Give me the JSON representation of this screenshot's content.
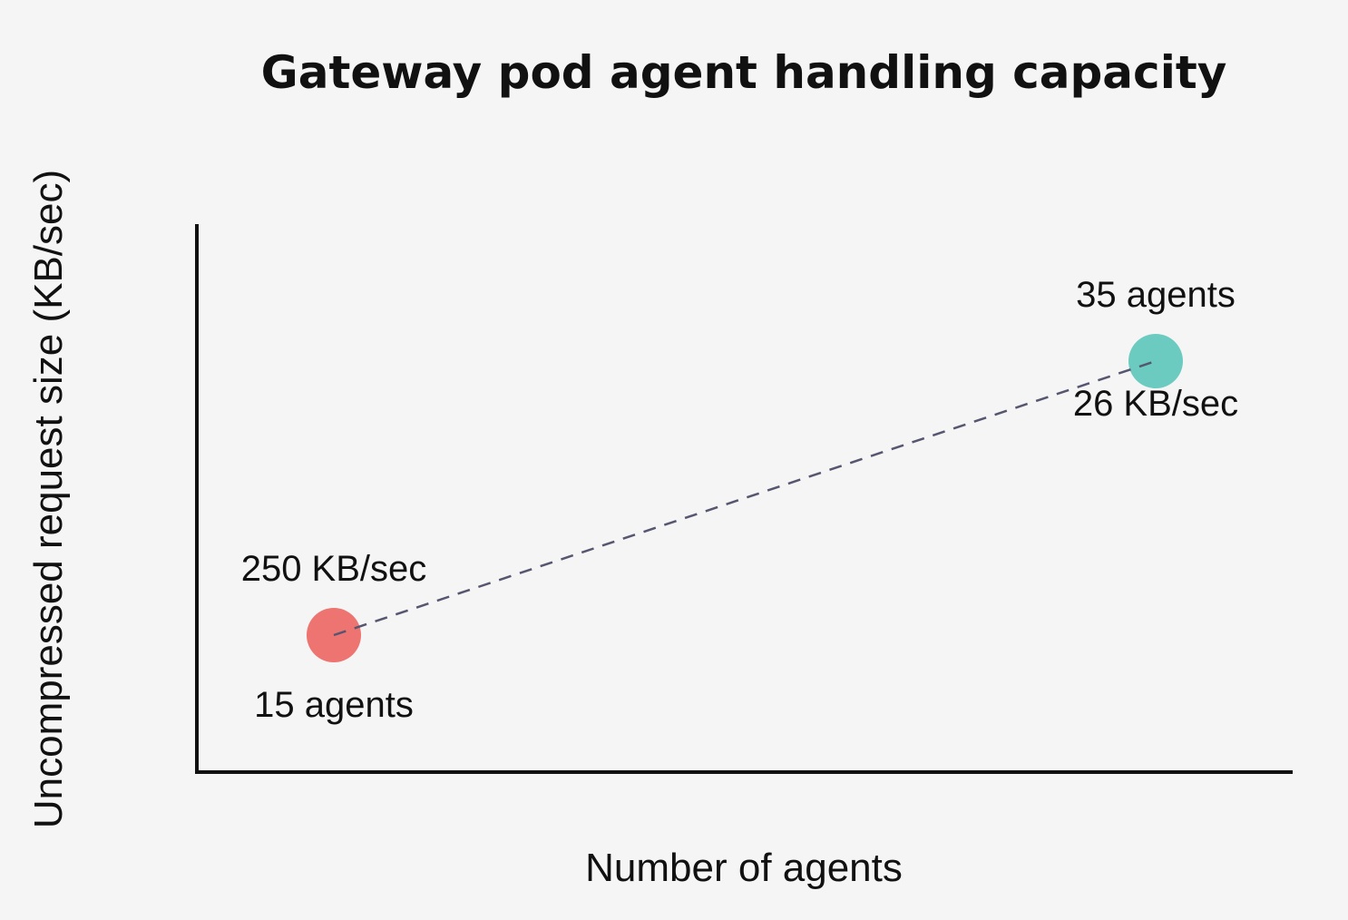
{
  "chart_data": {
    "type": "scatter",
    "title": "Gateway pod agent handling capacity",
    "xlabel": "Number of agents",
    "ylabel": "Uncompressed request size (KB/sec)",
    "points": [
      {
        "x": 15,
        "y": 250,
        "x_label": "15 agents",
        "y_label": "250 KB/sec",
        "color": "#ed7470"
      },
      {
        "x": 35,
        "y": 26,
        "x_label": "35 agents",
        "y_label": "26 KB/sec",
        "color": "#6ccbc0"
      }
    ],
    "connector": "dashed",
    "ticks": false,
    "grid": false,
    "legend": "none"
  }
}
